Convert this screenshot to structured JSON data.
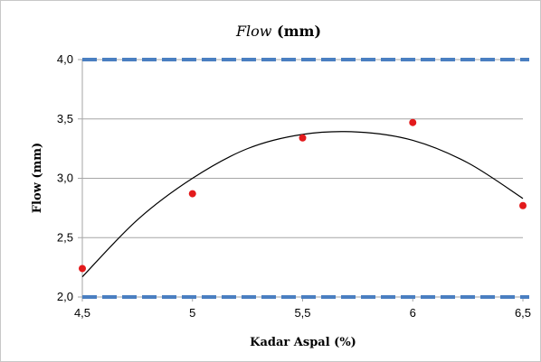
{
  "chart_data": {
    "type": "scatter",
    "title_italic": "Flow",
    "title_rest": " (mm)",
    "xlabel": "Kadar Aspal (%)",
    "ylabel": "Flow (mm)",
    "xlim": [
      4.5,
      6.5
    ],
    "ylim": [
      2.0,
      4.0
    ],
    "x_ticks": [
      "4,5",
      "5",
      "5,5",
      "6",
      "6,5"
    ],
    "x_tick_values": [
      4.5,
      5.0,
      5.5,
      6.0,
      6.5
    ],
    "y_ticks": [
      "2,0",
      "2,5",
      "3,0",
      "3,5",
      "4,0"
    ],
    "y_tick_values": [
      2.0,
      2.5,
      3.0,
      3.5,
      4.0
    ],
    "grid": true,
    "points": {
      "x": [
        4.5,
        5.0,
        5.5,
        6.0,
        6.5
      ],
      "y": [
        2.24,
        2.87,
        3.34,
        3.47,
        2.77
      ],
      "color": "#e31a1c"
    },
    "trendline": {
      "type": "polynomial-2",
      "x": [
        4.5,
        4.75,
        5.0,
        5.25,
        5.5,
        5.75,
        6.0,
        6.25,
        6.5
      ],
      "y": [
        2.17,
        2.65,
        3.0,
        3.25,
        3.37,
        3.39,
        3.32,
        3.13,
        2.83
      ],
      "color": "#000000"
    },
    "limit_lines": [
      {
        "y": 4.0,
        "color": "#4a7fc1",
        "style": "dashed"
      },
      {
        "y": 2.0,
        "color": "#4a7fc1",
        "style": "dashed"
      }
    ]
  }
}
